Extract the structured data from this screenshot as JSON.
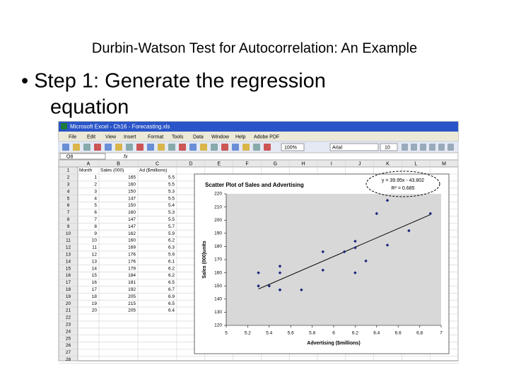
{
  "slide": {
    "title": "Durbin-Watson Test for Autocorrelation: An Example",
    "bullet": [
      "• Step 1: Generate the regression",
      "equation"
    ]
  },
  "excel": {
    "window_title": "Microsoft Excel - Ch16 - Forecasting.xls",
    "menu": [
      "File",
      "Edit",
      "View",
      "Insert",
      "Format",
      "Tools",
      "Data",
      "Window",
      "Help",
      "Adobe PDF"
    ],
    "zoom": "100%",
    "font": "Arial",
    "font_size": "10",
    "name_box": "O8",
    "fx": "fx",
    "columns": [
      "A",
      "B",
      "C",
      "D",
      "E",
      "F",
      "G",
      "H",
      "I",
      "J",
      "K",
      "L",
      "M"
    ],
    "row_numbers": [
      1,
      2,
      3,
      4,
      5,
      6,
      7,
      8,
      9,
      10,
      11,
      12,
      13,
      14,
      15,
      16,
      17,
      18,
      19,
      20,
      21,
      22,
      23,
      24,
      25,
      26,
      27,
      28
    ],
    "header": [
      "Month",
      "Sales (000)",
      "Ad ($millions)"
    ],
    "rows": [
      [
        1,
        165,
        5.5
      ],
      [
        2,
        160,
        5.5
      ],
      [
        3,
        150,
        5.3
      ],
      [
        4,
        147,
        5.5
      ],
      [
        5,
        150,
        5.4
      ],
      [
        6,
        160,
        5.3
      ],
      [
        7,
        147,
        5.5
      ],
      [
        8,
        147,
        5.7
      ],
      [
        9,
        162,
        5.9
      ],
      [
        10,
        160,
        6.2
      ],
      [
        11,
        169,
        6.3
      ],
      [
        12,
        176,
        5.9
      ],
      [
        13,
        176,
        6.1
      ],
      [
        14,
        179,
        6.2
      ],
      [
        15,
        184,
        6.2
      ],
      [
        16,
        181,
        6.5
      ],
      [
        17,
        192,
        6.7
      ],
      [
        18,
        205,
        6.9
      ],
      [
        19,
        215,
        6.5
      ],
      [
        20,
        205,
        6.4
      ]
    ]
  },
  "chart_data": {
    "type": "scatter",
    "title": "Scatter Plot of Sales and Advertising",
    "x_label": "Advertising ($millions)",
    "y_label": "Sales (000)units",
    "x": [
      5.5,
      5.5,
      5.3,
      5.5,
      5.4,
      5.3,
      5.5,
      5.7,
      5.9,
      6.2,
      6.3,
      5.9,
      6.1,
      6.2,
      6.2,
      6.5,
      6.7,
      6.9,
      6.5,
      6.4
    ],
    "values": [
      165,
      160,
      150,
      147,
      150,
      160,
      147,
      147,
      162,
      160,
      169,
      176,
      176,
      179,
      184,
      181,
      192,
      205,
      215,
      205
    ],
    "color": "#1a237e",
    "trend_color": "#000000",
    "xlim": [
      5,
      7
    ],
    "xticks": [
      5,
      5.2,
      5.4,
      5.6,
      5.8,
      6,
      6.2,
      6.4,
      6.6,
      6.8,
      7
    ],
    "ylim": [
      120,
      220
    ],
    "yticks": [
      120,
      130,
      140,
      150,
      160,
      170,
      180,
      190,
      200,
      210,
      220
    ],
    "grid": false,
    "equation": "y = 39.95x - 43.802",
    "r_squared": "R² = 0.685"
  }
}
